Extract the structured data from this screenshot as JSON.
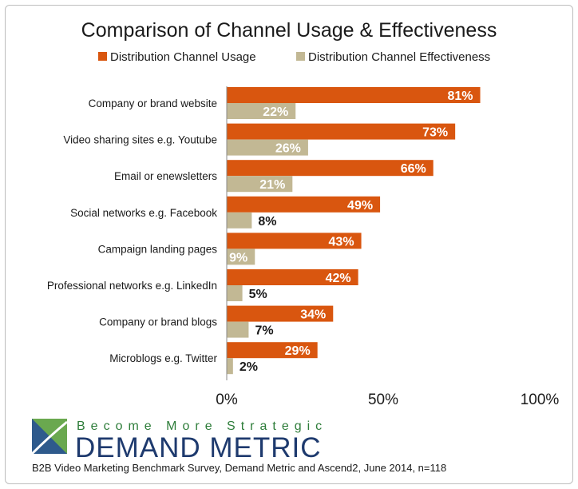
{
  "chart_data": {
    "type": "bar",
    "orientation": "horizontal",
    "title": "Comparison of Channel Usage & Effectiveness",
    "categories": [
      "Company or brand website",
      "Video sharing sites e.g. Youtube",
      "Email or enewsletters",
      "Social networks e.g. Facebook",
      "Campaign landing pages",
      "Professional networks e.g. LinkedIn",
      "Company or brand blogs",
      "Microblogs e.g. Twitter"
    ],
    "series": [
      {
        "name": "Distribution Channel Usage",
        "color": "#d9560f",
        "values": [
          81,
          73,
          66,
          49,
          43,
          42,
          34,
          29
        ]
      },
      {
        "name": "Distribution Channel Effectiveness",
        "color": "#c2b894",
        "values": [
          22,
          26,
          21,
          8,
          9,
          5,
          7,
          2
        ]
      }
    ],
    "xlim": [
      0,
      100
    ],
    "xticks": [
      "0%",
      "50%",
      "100%"
    ],
    "xlabel": "",
    "ylabel": "",
    "legend_position": "top",
    "grid": false
  },
  "branding": {
    "tagline": "Become More Strategic",
    "company": "DEMAND METRIC"
  },
  "footer": {
    "source": "B2B Video Marketing Benchmark Survey, Demand Metric and Ascend2, June 2014, n=118"
  }
}
